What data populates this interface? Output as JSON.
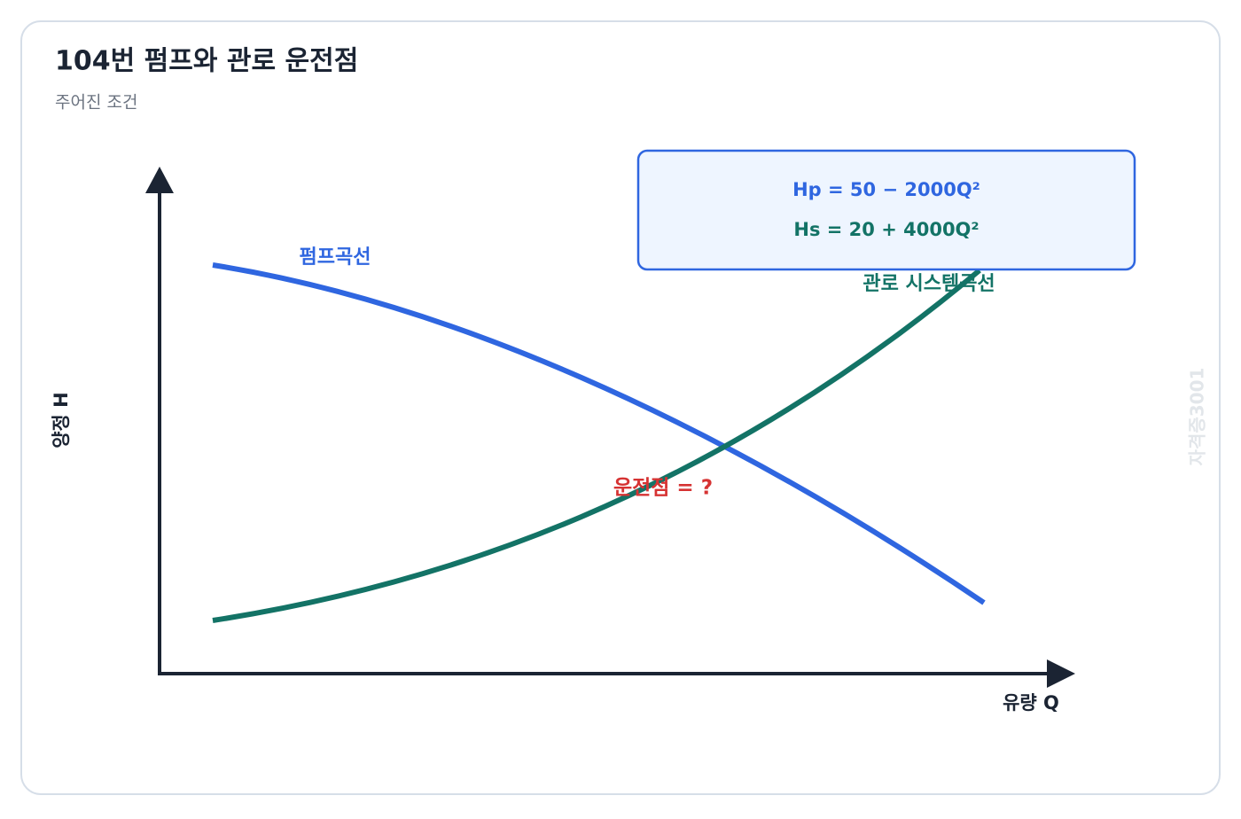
{
  "header": {
    "title": "104번 펌프와 관로 운전점",
    "subtitle": "주어진 조건"
  },
  "axes": {
    "y_label": "양정 H",
    "x_label": "유량 Q"
  },
  "curves": {
    "pump_label": "펌프곡선",
    "system_label": "관로 시스템곡선"
  },
  "formulas": {
    "pump": "Hp = 50 − 2000Q²",
    "system": "Hs = 20 + 4000Q²"
  },
  "operating_point": "운전점 = ?",
  "watermark": "자격증3001"
}
